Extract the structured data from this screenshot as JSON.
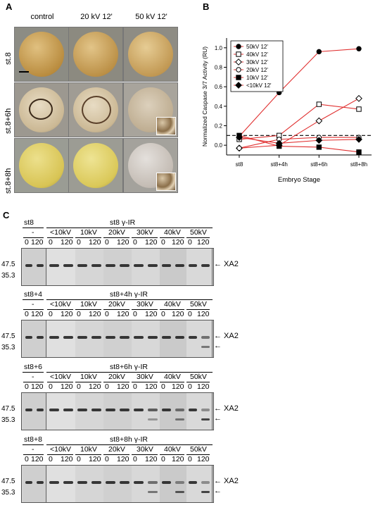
{
  "panels": {
    "a": "A",
    "b": "B",
    "c": "C"
  },
  "panel_a": {
    "columns": [
      "control",
      "20 kV 12'",
      "50 kV 12'"
    ],
    "rows": [
      "st.8",
      "st.8+6h",
      "st.8+8h"
    ]
  },
  "chart_data": {
    "type": "line",
    "categories": [
      "st8",
      "st8+4h",
      "st8+6h",
      "st8+8h"
    ],
    "xlabel": "Embryo Stage",
    "ylabel": "Normalized Caspase 3/7 Activity (RU)",
    "ylim": [
      -0.1,
      1.1
    ],
    "yticks": [
      "0.0",
      "0.2",
      "0.4",
      "0.6",
      "0.8",
      "1.0"
    ],
    "legend_position": "top-left",
    "reference_line": 0.1,
    "line_color": "#e03030",
    "series": [
      {
        "name": "50kV 12'",
        "marker": "filled-circle",
        "values": [
          0.09,
          0.54,
          0.96,
          0.99
        ]
      },
      {
        "name": "40kV 12'",
        "marker": "open-square",
        "values": [
          0.06,
          0.1,
          0.42,
          0.37
        ]
      },
      {
        "name": "30kV 12'",
        "marker": "open-diamond",
        "values": [
          -0.03,
          0.0,
          0.25,
          0.48
        ]
      },
      {
        "name": "20kV 12'",
        "marker": "open-circle",
        "values": [
          -0.03,
          0.06,
          0.08,
          0.08
        ]
      },
      {
        "name": "10kV 12'",
        "marker": "filled-square",
        "values": [
          0.1,
          -0.01,
          -0.02,
          -0.07
        ]
      },
      {
        "name": "<10kV 12'",
        "marker": "filled-diamond",
        "values": [
          0.08,
          0.02,
          0.05,
          0.06
        ]
      }
    ]
  },
  "panel_c": {
    "groups": [
      "-",
      "<10kV",
      "10kV",
      "20kV",
      "30kV",
      "40kV",
      "50kV"
    ],
    "lane_labels": [
      "0",
      "120"
    ],
    "mw_markers": [
      "47.5",
      "35.3"
    ],
    "band_label": "XA2",
    "blocks": [
      {
        "stage": "st8",
        "treatment": "st8 γ-IR",
        "cleaved": [
          0,
          0,
          0,
          0,
          0,
          0,
          0
        ]
      },
      {
        "stage": "st8+4",
        "treatment": "st8+4h γ-IR",
        "cleaved": [
          0,
          0,
          0,
          0,
          0,
          0,
          0.6
        ]
      },
      {
        "stage": "st8+6",
        "treatment": "st8+6h γ-IR",
        "cleaved": [
          0,
          0,
          0,
          0,
          0.4,
          0.6,
          0.9
        ]
      },
      {
        "stage": "st8+8",
        "treatment": "st8+8h γ-IR",
        "cleaved": [
          0,
          0,
          0,
          0,
          0.6,
          0.8,
          0.9
        ]
      }
    ]
  }
}
